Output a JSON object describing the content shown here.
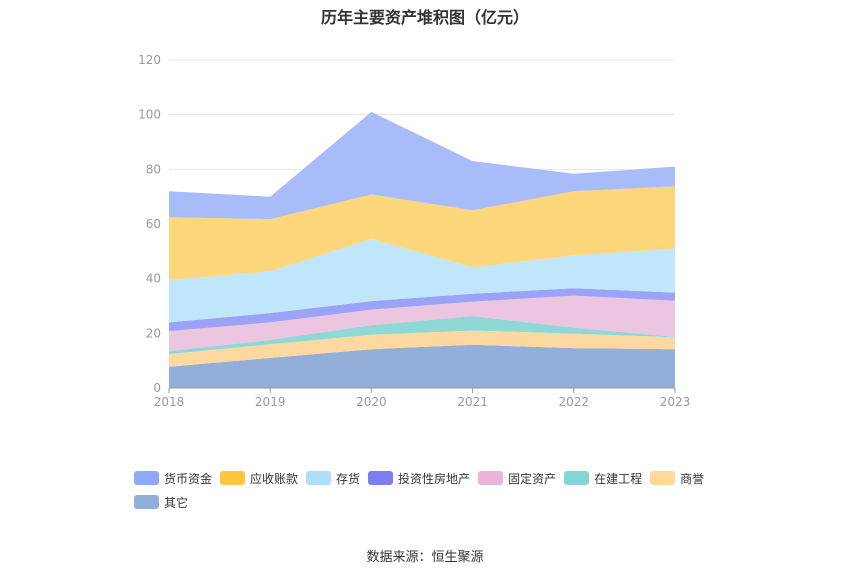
{
  "chart_data": {
    "type": "area",
    "stacked": true,
    "title": "历年主要资产堆积图（亿元）",
    "categories": [
      "2018",
      "2019",
      "2020",
      "2021",
      "2022",
      "2023"
    ],
    "ylim": [
      0,
      120
    ],
    "yticks": [
      0,
      20,
      40,
      60,
      80,
      100,
      120
    ],
    "grid": true,
    "legend_position": "bottom",
    "series": [
      {
        "name": "其它",
        "color": "#93afd9",
        "values": [
          7.8,
          11,
          14.2,
          15.8,
          14.6,
          14.2
        ]
      },
      {
        "name": "商誉",
        "color": "#fdd9a1",
        "values": [
          4.6,
          5,
          5.3,
          5.2,
          5.3,
          4.3
        ]
      },
      {
        "name": "在建工程",
        "color": "#8fd8d6",
        "values": [
          1.1,
          1.6,
          3.5,
          5.3,
          2.2,
          0.2
        ]
      },
      {
        "name": "固定资产",
        "color": "#ecc5e0",
        "values": [
          7.3,
          6.4,
          5.7,
          5.3,
          11.7,
          13.2
        ]
      },
      {
        "name": "投资性房地产",
        "color": "#9aa3f5",
        "values": [
          3.2,
          3.4,
          3.1,
          2.9,
          2.7,
          3
        ]
      },
      {
        "name": "存货",
        "color": "#bfe6fb",
        "values": [
          15.5,
          15.3,
          22.7,
          9.7,
          12,
          16.1
        ]
      },
      {
        "name": "应收账款",
        "color": "#fed67c",
        "values": [
          23,
          19.1,
          16.3,
          20.8,
          23.5,
          22.8
        ]
      },
      {
        "name": "货币资金",
        "color": "#a8bcfa",
        "values": [
          9.5,
          8.2,
          30.2,
          18,
          6.4,
          7.2
        ]
      }
    ],
    "legend": [
      {
        "name": "货币资金",
        "color": "#8ea9f7"
      },
      {
        "name": "应收账款",
        "color": "#fdc63e"
      },
      {
        "name": "存货",
        "color": "#abdffb"
      },
      {
        "name": "投资性房地产",
        "color": "#7b7df0"
      },
      {
        "name": "固定资产",
        "color": "#e9b5d9"
      },
      {
        "name": "在建工程",
        "color": "#82d6d4"
      },
      {
        "name": "商誉",
        "color": "#fdd99a"
      },
      {
        "name": "其它",
        "color": "#93afd9"
      }
    ],
    "source": "数据来源：恒生聚源"
  }
}
